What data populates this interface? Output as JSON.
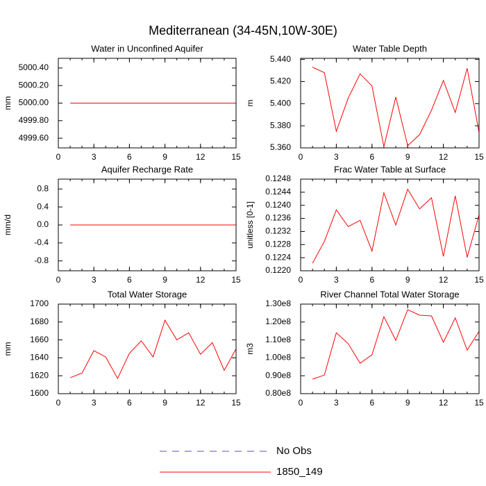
{
  "title": "Mediterranean (34-45N,10W-30E)",
  "legend": [
    {
      "name": "No Obs",
      "color": "#5050c8",
      "dash": true
    },
    {
      "name": "1850_149",
      "color": "#ff0000",
      "dash": false
    }
  ],
  "chart_data": [
    {
      "type": "line",
      "title": "Water in Unconfined Aquifer",
      "ylabel": "mm",
      "x": [
        1,
        2,
        3,
        4,
        5,
        6,
        7,
        8,
        9,
        10,
        11,
        12,
        13,
        14,
        15
      ],
      "xlim": [
        0,
        15
      ],
      "xticks": [
        0,
        3,
        6,
        9,
        12,
        15
      ],
      "ylim": [
        4999.49,
        5000.51
      ],
      "yticks": [
        {
          "value": 4999.6,
          "label": "4999.60"
        },
        {
          "value": 4999.8,
          "label": "4999.80"
        },
        {
          "value": 5000,
          "label": "5000.00"
        },
        {
          "value": 5000.2,
          "label": "5000.20"
        },
        {
          "value": 5000.4,
          "label": "5000.40"
        }
      ],
      "series": [
        {
          "color": "#ff0000",
          "values": [
            5000,
            5000,
            5000,
            5000,
            5000,
            5000,
            5000,
            5000,
            5000,
            5000,
            5000,
            5000,
            5000,
            5000,
            5000
          ]
        }
      ]
    },
    {
      "type": "line",
      "title": "Water Table Depth",
      "ylabel": "m",
      "x": [
        1,
        2,
        3,
        4,
        5,
        6,
        7,
        8,
        9,
        10,
        11,
        12,
        13,
        14,
        15
      ],
      "xlim": [
        0,
        15
      ],
      "xticks": [
        0,
        3,
        6,
        9,
        12,
        15
      ],
      "ylim": [
        5.36,
        5.441
      ],
      "yticks": [
        {
          "value": 5.36,
          "label": "5.360"
        },
        {
          "value": 5.38,
          "label": "5.380"
        },
        {
          "value": 5.4,
          "label": "5.400"
        },
        {
          "value": 5.42,
          "label": "5.420"
        },
        {
          "value": 5.44,
          "label": "5.440"
        }
      ],
      "series": [
        {
          "color": "#ff0000",
          "values": [
            5.433,
            5.428,
            5.375,
            5.405,
            5.427,
            5.416,
            5.361,
            5.406,
            5.362,
            5.372,
            5.394,
            5.421,
            5.392,
            5.432,
            5.374
          ]
        }
      ]
    },
    {
      "type": "line",
      "title": "Aquifer Recharge Rate",
      "ylabel": "mm/d",
      "x": [
        1,
        2,
        3,
        4,
        5,
        6,
        7,
        8,
        9,
        10,
        11,
        12,
        13,
        14,
        15
      ],
      "xlim": [
        0,
        15
      ],
      "xticks": [
        0,
        3,
        6,
        9,
        12,
        15
      ],
      "ylim": [
        -1.02,
        1.02
      ],
      "yticks": [
        -0.8,
        -0.4,
        {
          "value": 0,
          "label": "0.0"
        },
        0.4,
        0.8
      ],
      "series": [
        {
          "color": "#ff0000",
          "values": [
            0,
            0,
            0,
            0,
            0,
            0,
            0,
            0,
            0,
            0,
            0,
            0,
            0,
            0,
            0
          ]
        }
      ]
    },
    {
      "type": "line",
      "title": "Frac Water Table at Surface",
      "ylabel": "unitless [0-1]",
      "x": [
        1,
        2,
        3,
        4,
        5,
        6,
        7,
        8,
        9,
        10,
        11,
        12,
        13,
        14,
        15
      ],
      "xlim": [
        0,
        15
      ],
      "xticks": [
        0,
        3,
        6,
        9,
        12,
        15
      ],
      "ylim": [
        0.122,
        0.1248
      ],
      "yticks": [
        {
          "value": 0.122,
          "label": "0.1220"
        },
        0.1224,
        0.1228,
        0.1232,
        0.1236,
        {
          "value": 0.124,
          "label": "0.1240"
        },
        0.1244,
        0.1248
      ],
      "series": [
        {
          "color": "#ff0000",
          "values": [
            0.12223,
            0.1229,
            0.12386,
            0.12335,
            0.12354,
            0.1226,
            0.12438,
            0.1234,
            0.12449,
            0.12389,
            0.12423,
            0.12244,
            0.12429,
            0.12241,
            0.12371
          ]
        }
      ]
    },
    {
      "type": "line",
      "title": "Total Water Storage",
      "ylabel": "mm",
      "x": [
        1,
        2,
        3,
        4,
        5,
        6,
        7,
        8,
        9,
        10,
        11,
        12,
        13,
        14,
        15
      ],
      "xlim": [
        0,
        15
      ],
      "xticks": [
        0,
        3,
        6,
        9,
        12,
        15
      ],
      "ylim": [
        1600,
        1700
      ],
      "yticks": [
        1600,
        1620,
        1640,
        1660,
        1680,
        1700
      ],
      "series": [
        {
          "color": "#ff0000",
          "values": [
            1617.8,
            1623,
            1648,
            1641,
            1617,
            1645,
            1659,
            1641,
            1682,
            1660,
            1668,
            1644,
            1657,
            1626,
            1650
          ]
        }
      ]
    },
    {
      "type": "line",
      "title": "River Channel Total Water Storage",
      "ylabel": "m3",
      "x": [
        1,
        2,
        3,
        4,
        5,
        6,
        7,
        8,
        9,
        10,
        11,
        12,
        13,
        14,
        15
      ],
      "xlim": [
        0,
        15
      ],
      "xticks": [
        0,
        3,
        6,
        9,
        12,
        15
      ],
      "ylim": [
        80000000,
        130000000
      ],
      "yticks": [
        {
          "value": 80000000,
          "label": "0.80e8"
        },
        {
          "value": 90000000,
          "label": "0.90e8"
        },
        {
          "value": 100000000,
          "label": "1.00e8"
        },
        {
          "value": 110000000,
          "label": "1.10e8"
        },
        {
          "value": 120000000,
          "label": "1.20e8"
        },
        {
          "value": 130000000,
          "label": "1.30e8"
        }
      ],
      "series": [
        {
          "color": "#ff0000",
          "values": [
            88100000,
            90400000,
            114000000,
            107900000,
            97000000,
            101700000,
            123000000,
            109800000,
            126900000,
            123800000,
            123400000,
            108700000,
            122300000,
            104300000,
            114800000
          ]
        }
      ]
    }
  ]
}
